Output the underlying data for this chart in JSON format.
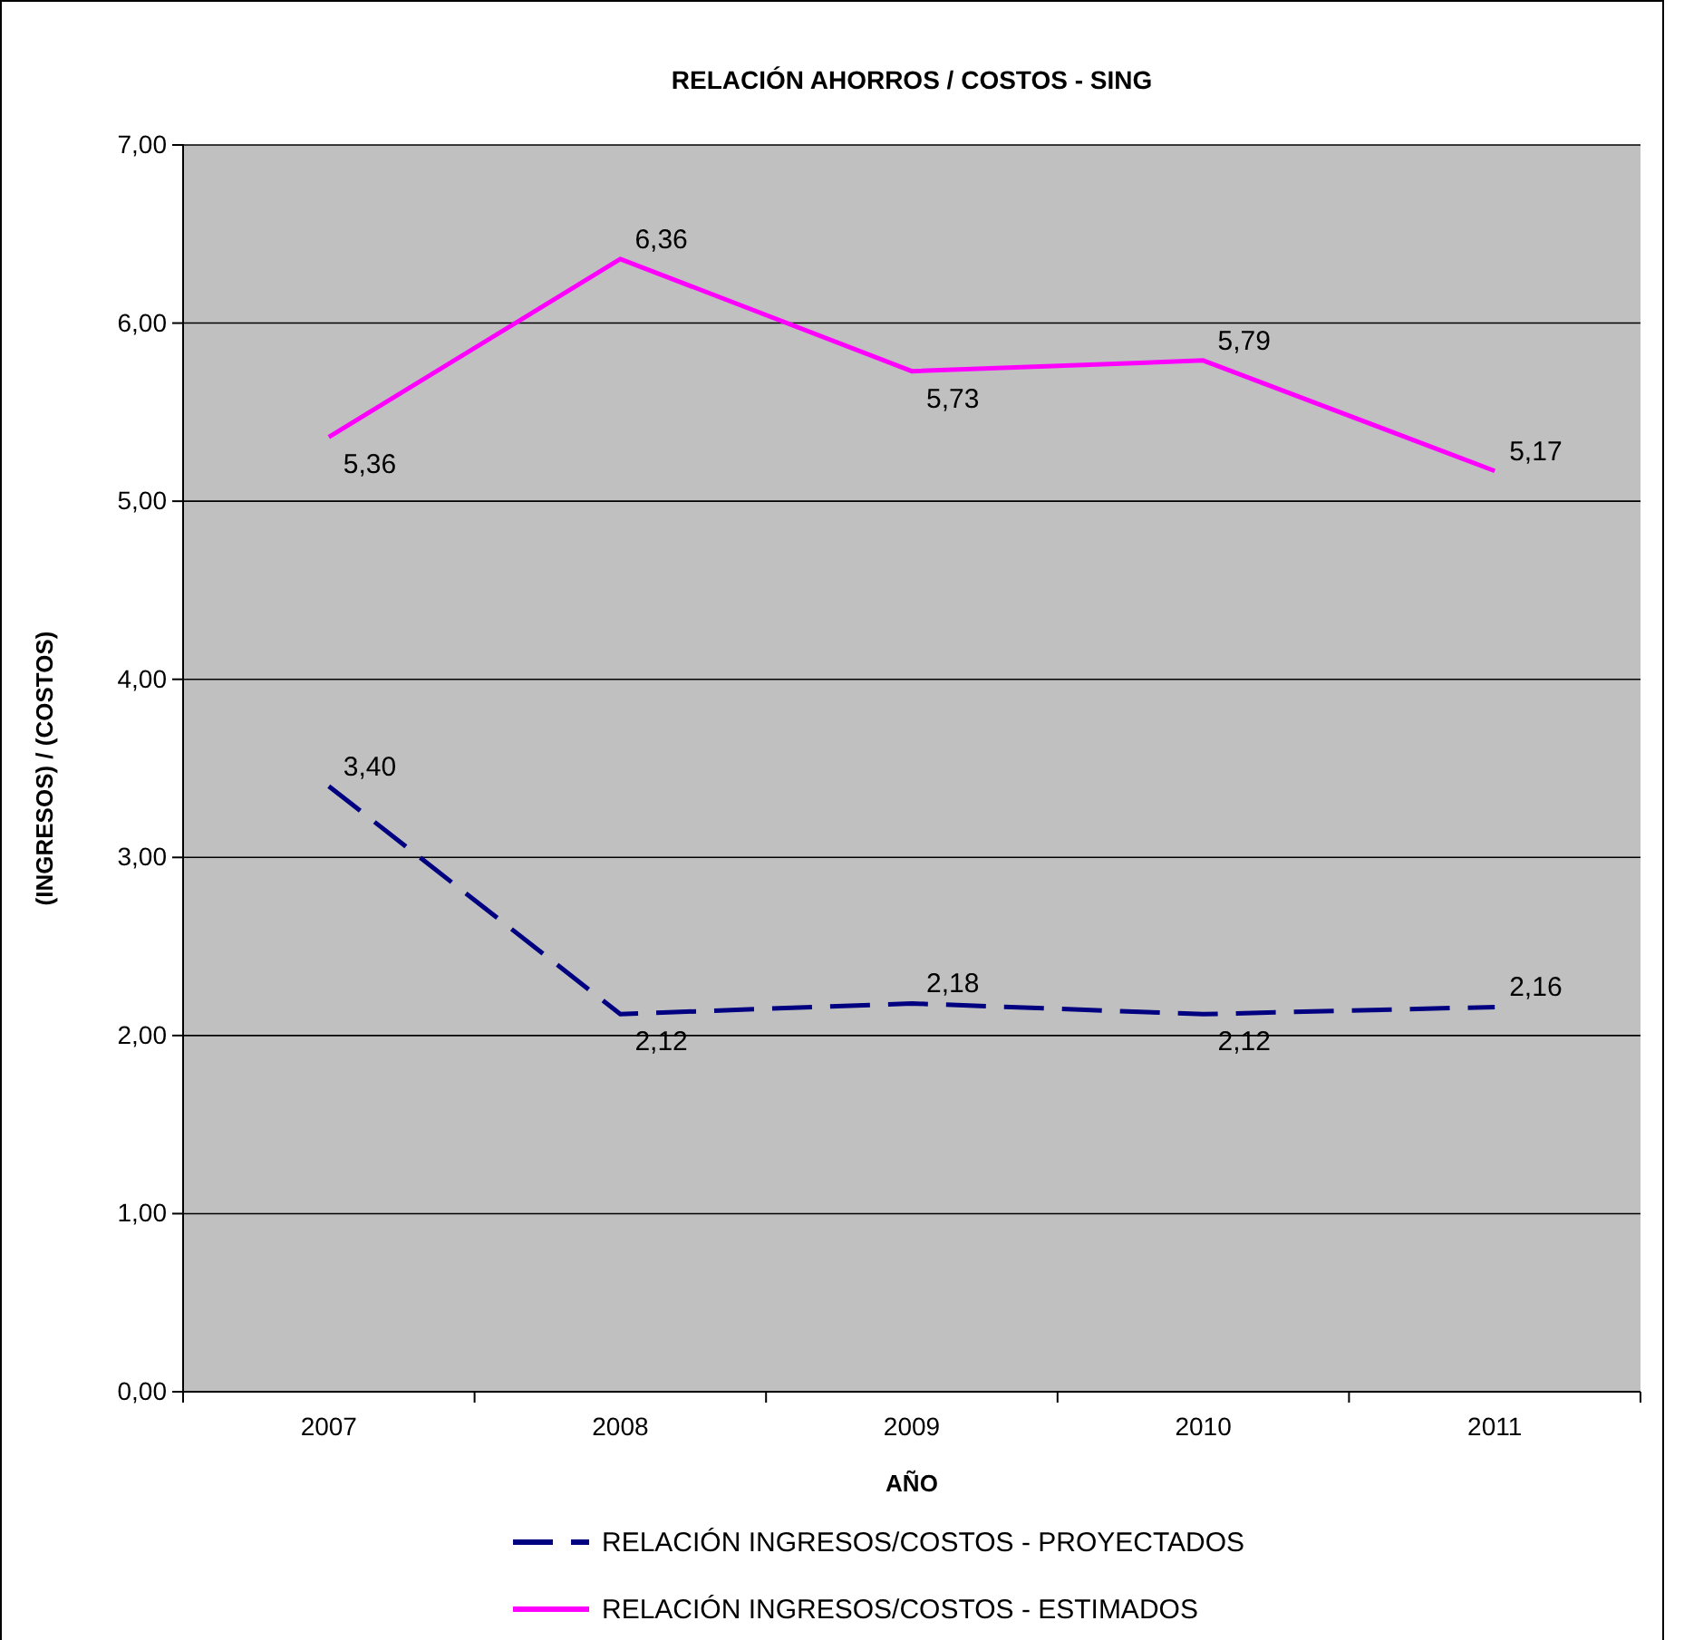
{
  "chart_data": {
    "type": "line",
    "title": "RELACIÓN AHORROS / COSTOS - SING",
    "xlabel": "AÑO",
    "ylabel": "(INGRESOS) / (COSTOS)",
    "categories": [
      "2007",
      "2008",
      "2009",
      "2010",
      "2011"
    ],
    "series": [
      {
        "name": "RELACIÓN INGRESOS/COSTOS -  PROYECTADOS",
        "color": "#000080",
        "line_style": "dashed",
        "values": [
          3.4,
          2.12,
          2.18,
          2.12,
          2.16
        ],
        "value_labels": [
          "3,40",
          "2,12",
          "2,18",
          "2,12",
          "2,16"
        ]
      },
      {
        "name": "RELACIÓN INGRESOS/COSTOS -  ESTIMADOS",
        "color": "#ff00ff",
        "line_style": "solid",
        "values": [
          5.36,
          6.36,
          5.73,
          5.79,
          5.17
        ],
        "value_labels": [
          "5,36",
          "6,36",
          "5,73",
          "5,79",
          "5,17"
        ]
      }
    ],
    "ylim": [
      0,
      7
    ],
    "yticks": [
      {
        "value": 0,
        "label": "0,00"
      },
      {
        "value": 1,
        "label": "1,00"
      },
      {
        "value": 2,
        "label": "2,00"
      },
      {
        "value": 3,
        "label": "3,00"
      },
      {
        "value": 4,
        "label": "4,00"
      },
      {
        "value": 5,
        "label": "5,00"
      },
      {
        "value": 6,
        "label": "6,00"
      },
      {
        "value": 7,
        "label": "7,00"
      }
    ],
    "grid": "y",
    "legend": "bottom",
    "marker": "none"
  }
}
